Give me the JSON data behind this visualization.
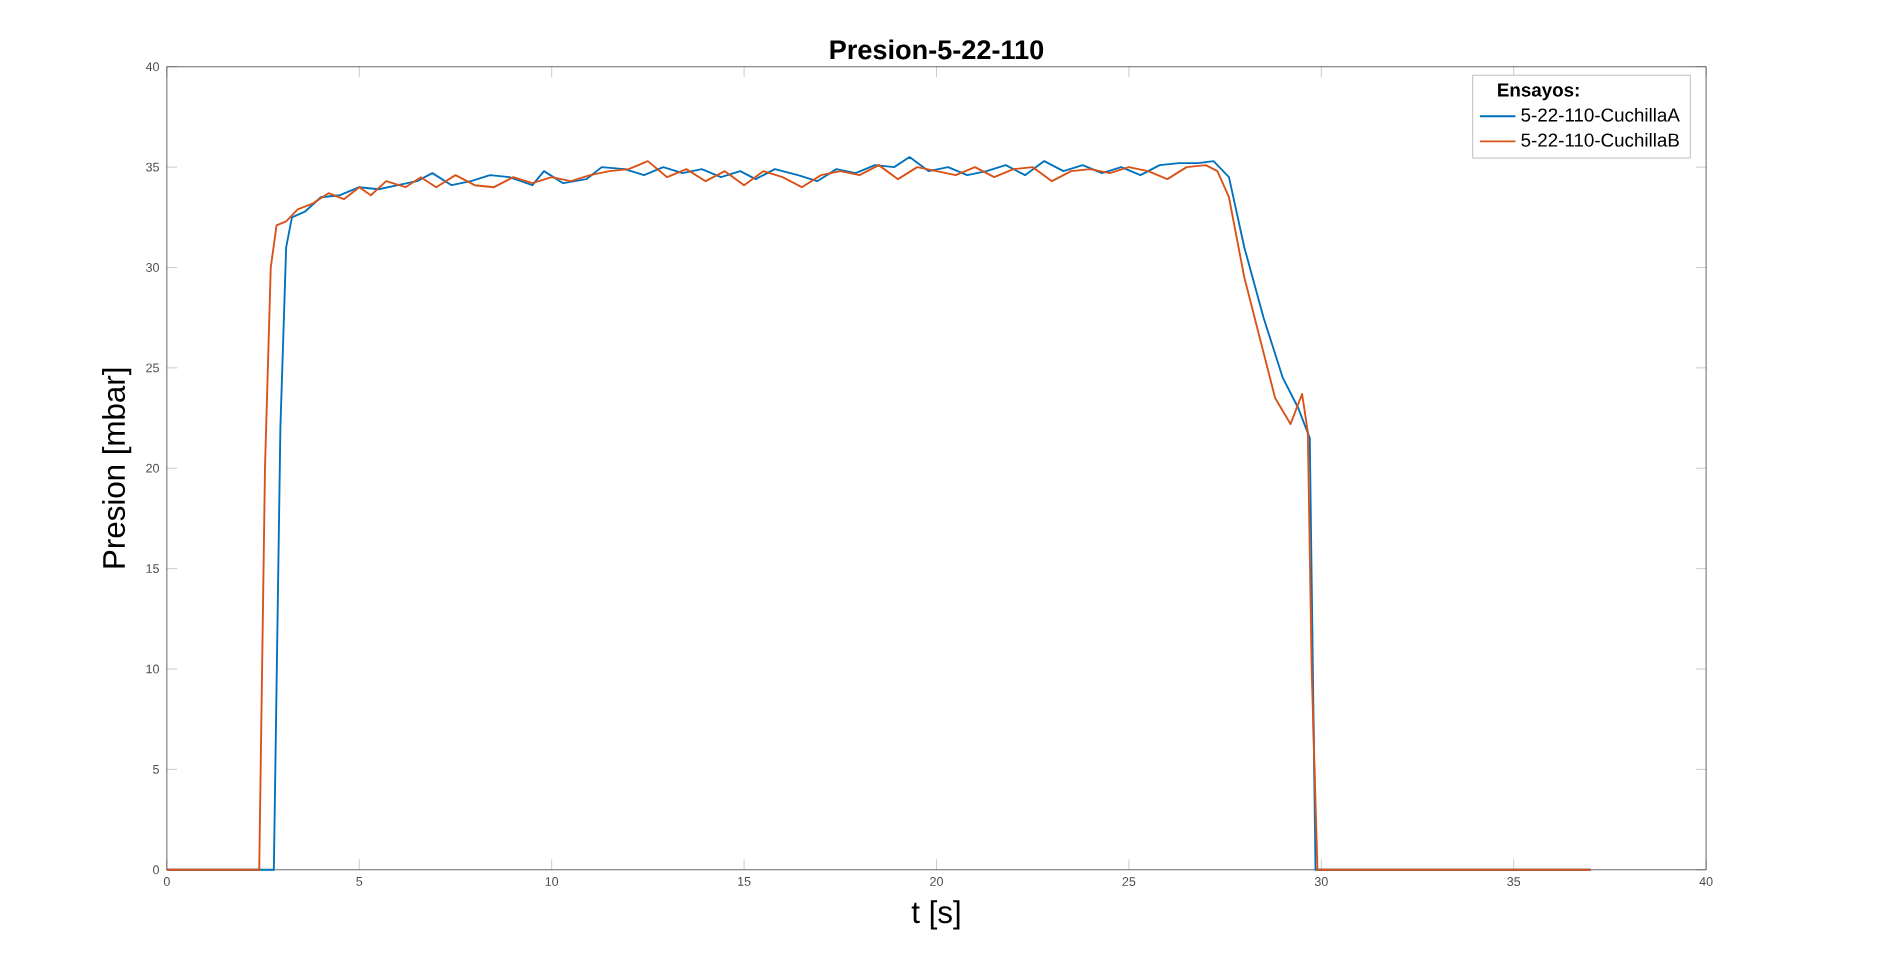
{
  "chart_data": {
    "type": "line",
    "title": "Presion-5-22-110",
    "xlabel": "t [s]",
    "ylabel": "Presion [mbar]",
    "legend_title": "Ensayos:",
    "legend": "top right",
    "grid": false,
    "marker": "none",
    "line_style": "solid",
    "xlim": [
      0,
      40
    ],
    "ylim": [
      0,
      40
    ],
    "xticks": [
      0,
      5,
      10,
      15,
      20,
      25,
      30,
      35,
      40
    ],
    "yticks": [
      0,
      5,
      10,
      15,
      20,
      25,
      30,
      35,
      40
    ],
    "series": [
      {
        "name": "5-22-110-CuchillaA",
        "color": "#0072bd",
        "x": [
          0,
          2.78,
          2.95,
          3.1,
          3.25,
          3.6,
          4.0,
          4.5,
          5.0,
          5.5,
          6.0,
          6.5,
          6.9,
          7.4,
          7.9,
          8.4,
          8.9,
          9.5,
          9.8,
          10.3,
          10.9,
          11.3,
          11.9,
          12.4,
          12.9,
          13.4,
          13.9,
          14.4,
          14.9,
          15.3,
          15.8,
          16.4,
          16.9,
          17.4,
          17.9,
          18.4,
          18.9,
          19.3,
          19.8,
          20.3,
          20.8,
          21.3,
          21.8,
          22.3,
          22.8,
          23.3,
          23.8,
          24.3,
          24.8,
          25.3,
          25.8,
          26.3,
          26.8,
          27.2,
          27.6,
          28.0,
          28.5,
          29.0,
          29.4,
          29.7,
          29.75,
          29.85,
          37
        ],
        "values": [
          0,
          0,
          22,
          31,
          32.5,
          32.8,
          33.5,
          33.6,
          34.0,
          33.9,
          34.1,
          34.3,
          34.7,
          34.1,
          34.3,
          34.6,
          34.5,
          34.1,
          34.8,
          34.2,
          34.4,
          35.0,
          34.9,
          34.6,
          35.0,
          34.7,
          34.9,
          34.5,
          34.8,
          34.4,
          34.9,
          34.6,
          34.3,
          34.9,
          34.7,
          35.1,
          35.0,
          35.5,
          34.8,
          35.0,
          34.6,
          34.8,
          35.1,
          34.6,
          35.3,
          34.8,
          35.1,
          34.7,
          35.0,
          34.6,
          35.1,
          35.2,
          35.2,
          35.3,
          34.5,
          31,
          27.5,
          24.5,
          23.0,
          21.5,
          null,
          0,
          0
        ]
      },
      {
        "name": "5-22-110-CuchillaB",
        "color": "#d95319",
        "x": [
          0,
          2.4,
          2.55,
          2.7,
          2.85,
          3.1,
          3.4,
          3.8,
          4.2,
          4.6,
          5.0,
          5.3,
          5.7,
          6.2,
          6.6,
          7.0,
          7.5,
          8.0,
          8.5,
          9.0,
          9.5,
          10.0,
          10.5,
          11.0,
          11.5,
          12.0,
          12.5,
          13.0,
          13.5,
          14.0,
          14.5,
          15.0,
          15.5,
          16.0,
          16.5,
          17.0,
          17.5,
          18.0,
          18.5,
          19.0,
          19.5,
          20.0,
          20.5,
          21.0,
          21.5,
          22.0,
          22.5,
          23.0,
          23.5,
          24.0,
          24.5,
          25.0,
          25.5,
          26.0,
          26.5,
          27.0,
          27.3,
          27.6,
          28.0,
          28.4,
          28.8,
          29.2,
          29.5,
          29.65,
          29.75,
          29.9,
          37
        ],
        "values": [
          0,
          0,
          20,
          30,
          32.1,
          32.3,
          32.9,
          33.2,
          33.7,
          33.4,
          34.0,
          33.6,
          34.3,
          34.0,
          34.5,
          34.0,
          34.6,
          34.1,
          34.0,
          34.5,
          34.2,
          34.5,
          34.3,
          34.6,
          34.8,
          34.9,
          35.3,
          34.5,
          34.9,
          34.3,
          34.8,
          34.1,
          34.8,
          34.5,
          34.0,
          34.6,
          34.8,
          34.6,
          35.1,
          34.4,
          35.0,
          34.8,
          34.6,
          35.0,
          34.5,
          34.9,
          35.0,
          34.3,
          34.8,
          34.9,
          34.7,
          35.0,
          34.8,
          34.4,
          35.0,
          35.1,
          34.8,
          33.5,
          29.5,
          26.5,
          23.5,
          22.2,
          23.7,
          21.8,
          10,
          0,
          0
        ]
      }
    ]
  }
}
